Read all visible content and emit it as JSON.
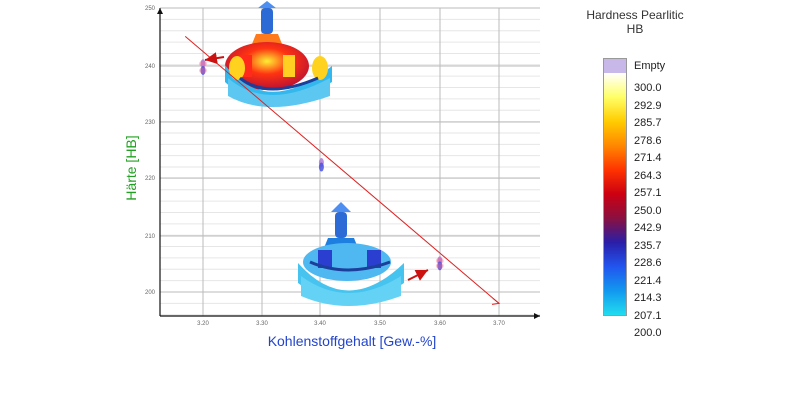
{
  "chart_data": {
    "type": "scatter",
    "xlabel": "Kohlenstoffgehalt [Gew.-%]",
    "ylabel": "Härte [HB]",
    "xlim": [
      3.15,
      3.75
    ],
    "ylim": [
      195,
      250
    ],
    "x_ticks": [
      "3.20",
      "3.30",
      "3.40",
      "3.50",
      "3.60",
      "3.70"
    ],
    "y_ticks": [
      "200",
      "210",
      "220",
      "230",
      "240",
      "250"
    ],
    "grid": true,
    "points": [
      {
        "x": 3.2,
        "y": 240.2
      },
      {
        "x": 3.2,
        "y": 239.0
      },
      {
        "x": 3.4,
        "y": 222.8
      },
      {
        "x": 3.4,
        "y": 222.0
      },
      {
        "x": 3.6,
        "y": 205.5
      },
      {
        "x": 3.6,
        "y": 204.6
      }
    ],
    "trend_line": {
      "x": [
        3.17,
        3.7
      ],
      "y": [
        245,
        198
      ]
    },
    "colors": {
      "axis_label_y": "#22a022",
      "axis_label_x": "#2244cc",
      "trend": "#dd2222",
      "grid": "#bbbbbb"
    }
  },
  "legend": {
    "title_line1": "Hardness Pearlitic",
    "title_line2": "HB",
    "empty_label": "Empty",
    "values": [
      "300.0",
      "292.9",
      "285.7",
      "278.6",
      "271.4",
      "264.3",
      "257.1",
      "250.0",
      "242.9",
      "235.7",
      "228.6",
      "221.4",
      "214.3",
      "207.1",
      "200.0"
    ],
    "empty_color": "#c8b8ea",
    "gradient": [
      "#ffffff",
      "#ffff66",
      "#ffcc00",
      "#ff8800",
      "#ff3300",
      "#cc0011",
      "#8a1040",
      "#2a1ea8",
      "#2255ee",
      "#1199ee",
      "#22ddee"
    ]
  }
}
